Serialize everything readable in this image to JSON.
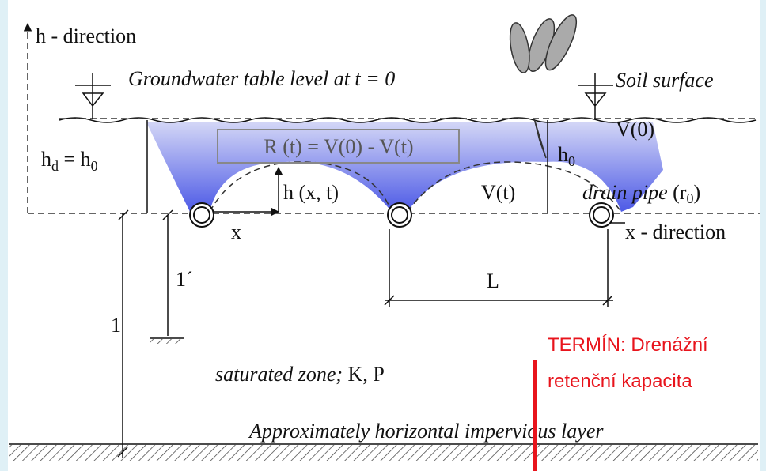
{
  "axes": {
    "h_axis": "h - direction",
    "x_axis": "x - direction"
  },
  "surface": {
    "groundwater": "Groundwater table level at t = 0",
    "soil": "Soil surface"
  },
  "labels": {
    "hd_eq_h0": {
      "h": "h",
      "sub_d": "d",
      "eq_h": " = h",
      "sub_0": "0"
    },
    "recharge": "R (t) = V(0) - V(t)",
    "v0": "V(0)",
    "h0": {
      "h": "h",
      "sub_0": "0"
    },
    "vt": "V(t)",
    "drain_pipe": {
      "text": "drain pipe",
      "paren": " (r",
      "sub_0": "0",
      "close": ")"
    },
    "hxt": "h (x, t)",
    "x": "x",
    "spacing": "L",
    "l_prime": "1´",
    "l": "1",
    "saturated": {
      "text": "saturated zone;",
      "params": " K, P"
    },
    "impervious": "Approximately horizontal impervious layer"
  },
  "callout": {
    "lines": [
      "TERMÍN: Drenážní",
      "retenční kapacita"
    ]
  }
}
